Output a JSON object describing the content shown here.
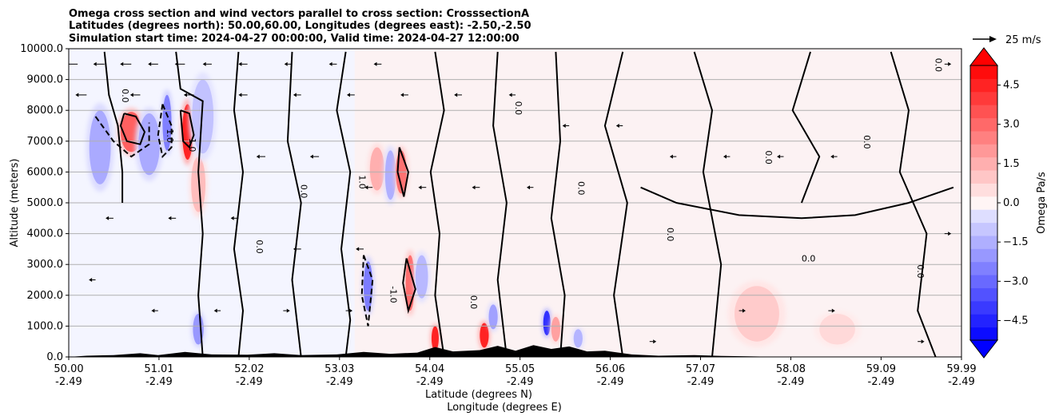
{
  "chart_data": {
    "type": "heatmap",
    "title_lines": [
      "Omega cross section and wind vectors parallel to cross section: CrosssectionA",
      "Latitudes (degrees north): 50.00,60.00, Longitudes (degrees east): -2.50,-2.50",
      "Simulation start time: 2024-04-27 00:00:00, Valid time: 2024-04-27 12:00:00"
    ],
    "ylabel": "Altitude (meters)",
    "xlabel_lat": "Latitude (degrees N)",
    "xlabel_lon": "Longitude (degrees E)",
    "ylim": [
      0,
      10000
    ],
    "xlim": [
      50.0,
      59.99
    ],
    "y_ticks": [
      {
        "value": 0,
        "label": "0.0"
      },
      {
        "value": 1000,
        "label": "1000.0"
      },
      {
        "value": 2000,
        "label": "2000.0"
      },
      {
        "value": 3000,
        "label": "3000.0"
      },
      {
        "value": 4000,
        "label": "4000.0"
      },
      {
        "value": 5000,
        "label": "5000.0"
      },
      {
        "value": 6000,
        "label": "6000.0"
      },
      {
        "value": 7000,
        "label": "7000.0"
      },
      {
        "value": 8000,
        "label": "8000.0"
      },
      {
        "value": 9000,
        "label": "9000.0"
      },
      {
        "value": 10000,
        "label": "10000.0"
      }
    ],
    "x_ticks": [
      {
        "value": 50.0,
        "lat": "50.00",
        "lon": "-2.49"
      },
      {
        "value": 51.01,
        "lat": "51.01",
        "lon": "-2.49"
      },
      {
        "value": 52.02,
        "lat": "52.02",
        "lon": "-2.49"
      },
      {
        "value": 53.03,
        "lat": "53.03",
        "lon": "-2.49"
      },
      {
        "value": 54.04,
        "lat": "54.04",
        "lon": "-2.49"
      },
      {
        "value": 55.05,
        "lat": "55.05",
        "lon": "-2.49"
      },
      {
        "value": 56.06,
        "lat": "56.06",
        "lon": "-2.49"
      },
      {
        "value": 57.07,
        "lat": "57.07",
        "lon": "-2.49"
      },
      {
        "value": 58.08,
        "lat": "58.08",
        "lon": "-2.49"
      },
      {
        "value": 59.09,
        "lat": "59.09",
        "lon": "-2.49"
      },
      {
        "value": 59.99,
        "lat": "59.99",
        "lon": "-2.49"
      }
    ],
    "colorbar": {
      "label": "Omega Pa/s",
      "range": [
        -5.25,
        5.25
      ],
      "levels": 21,
      "ticks": [
        {
          "value": 4.5,
          "label": "4.5"
        },
        {
          "value": 3.0,
          "label": "3.0"
        },
        {
          "value": 1.5,
          "label": "1.5"
        },
        {
          "value": 0.0,
          "label": "0.0"
        },
        {
          "value": -1.5,
          "label": "−1.5"
        },
        {
          "value": -3.0,
          "label": "−3.0"
        },
        {
          "value": -4.5,
          "label": "−4.5"
        }
      ]
    },
    "quiver_key": {
      "label": "25 m/s",
      "speed": 25
    },
    "contour_labels": [
      "0.0",
      "1.0",
      "-1.0"
    ],
    "annotations": [
      {
        "text": "0.0",
        "lat": 58.2,
        "alt": 3100
      }
    ],
    "omega_features": [
      {
        "lat": 50.7,
        "alt": 7300,
        "dlat": 0.12,
        "dalt": 650,
        "value": 3.2
      },
      {
        "lat": 50.35,
        "alt": 6800,
        "dlat": 0.12,
        "dalt": 1200,
        "value": -1.6
      },
      {
        "lat": 50.9,
        "alt": 6900,
        "dlat": 0.12,
        "dalt": 1000,
        "value": -1.6
      },
      {
        "lat": 51.1,
        "alt": 7600,
        "dlat": 0.05,
        "dalt": 900,
        "value": -2.5
      },
      {
        "lat": 51.33,
        "alt": 7300,
        "dlat": 0.06,
        "dalt": 900,
        "value": 4.5
      },
      {
        "lat": 51.45,
        "alt": 5600,
        "dlat": 0.08,
        "dalt": 900,
        "value": 1.2
      },
      {
        "lat": 51.5,
        "alt": 7800,
        "dlat": 0.12,
        "dalt": 1200,
        "value": -1.1
      },
      {
        "lat": 51.45,
        "alt": 900,
        "dlat": 0.06,
        "dalt": 500,
        "value": -2.0
      },
      {
        "lat": 53.35,
        "alt": 2300,
        "dlat": 0.05,
        "dalt": 800,
        "value": -2.6
      },
      {
        "lat": 53.45,
        "alt": 6100,
        "dlat": 0.08,
        "dalt": 700,
        "value": 1.5
      },
      {
        "lat": 53.6,
        "alt": 5900,
        "dlat": 0.06,
        "dalt": 800,
        "value": -1.5
      },
      {
        "lat": 53.72,
        "alt": 6000,
        "dlat": 0.06,
        "dalt": 700,
        "value": 2.8
      },
      {
        "lat": 53.82,
        "alt": 2400,
        "dlat": 0.05,
        "dalt": 900,
        "value": 2.9
      },
      {
        "lat": 53.95,
        "alt": 2600,
        "dlat": 0.07,
        "dalt": 700,
        "value": -1.3
      },
      {
        "lat": 54.1,
        "alt": 600,
        "dlat": 0.04,
        "dalt": 400,
        "value": 4.5
      },
      {
        "lat": 54.65,
        "alt": 700,
        "dlat": 0.05,
        "dalt": 400,
        "value": 4.5
      },
      {
        "lat": 54.75,
        "alt": 1300,
        "dlat": 0.05,
        "dalt": 400,
        "value": -1.8
      },
      {
        "lat": 55.35,
        "alt": 1100,
        "dlat": 0.04,
        "dalt": 400,
        "value": -4.2
      },
      {
        "lat": 55.45,
        "alt": 900,
        "dlat": 0.05,
        "dalt": 400,
        "value": 1.8
      },
      {
        "lat": 55.7,
        "alt": 600,
        "dlat": 0.05,
        "dalt": 300,
        "value": -1.4
      },
      {
        "lat": 57.7,
        "alt": 1400,
        "dlat": 0.25,
        "dalt": 900,
        "value": 0.9
      },
      {
        "lat": 58.6,
        "alt": 900,
        "dlat": 0.2,
        "dalt": 500,
        "value": 0.6
      }
    ],
    "contours": [
      {
        "style": "solid",
        "points": [
          [
            50.4,
            9900
          ],
          [
            50.45,
            8500
          ],
          [
            50.55,
            7500
          ],
          [
            50.6,
            6000
          ],
          [
            50.6,
            5000
          ]
        ]
      },
      {
        "style": "dash",
        "points": [
          [
            50.3,
            7800
          ],
          [
            50.5,
            7000
          ],
          [
            50.7,
            6500
          ],
          [
            50.9,
            6900
          ],
          [
            50.9,
            7600
          ]
        ]
      },
      {
        "style": "solid",
        "points": [
          [
            50.62,
            7900
          ],
          [
            50.75,
            7800
          ],
          [
            50.85,
            7300
          ],
          [
            50.8,
            6900
          ],
          [
            50.65,
            7000
          ],
          [
            50.58,
            7500
          ],
          [
            50.62,
            7900
          ]
        ]
      },
      {
        "style": "solid",
        "points": [
          [
            51.25,
            8000
          ],
          [
            51.35,
            7900
          ],
          [
            51.4,
            7200
          ],
          [
            51.35,
            6800
          ],
          [
            51.28,
            7000
          ],
          [
            51.25,
            8000
          ]
        ]
      },
      {
        "style": "dash",
        "points": [
          [
            51.05,
            8200
          ],
          [
            51.15,
            7500
          ],
          [
            51.15,
            6800
          ],
          [
            51.05,
            6500
          ],
          [
            51.0,
            7200
          ],
          [
            51.05,
            8200
          ]
        ]
      },
      {
        "style": "solid",
        "points": [
          [
            51.2,
            9900
          ],
          [
            51.25,
            8700
          ],
          [
            51.5,
            8300
          ],
          [
            51.45,
            6000
          ],
          [
            51.5,
            4000
          ],
          [
            51.45,
            2000
          ],
          [
            51.5,
            0
          ]
        ]
      },
      {
        "style": "solid",
        "points": [
          [
            51.9,
            9900
          ],
          [
            51.85,
            8000
          ],
          [
            51.95,
            6000
          ],
          [
            51.85,
            3500
          ],
          [
            51.95,
            1500
          ],
          [
            51.9,
            0
          ]
        ]
      },
      {
        "style": "solid",
        "points": [
          [
            52.5,
            9900
          ],
          [
            52.45,
            7000
          ],
          [
            52.6,
            5000
          ],
          [
            52.5,
            2500
          ],
          [
            52.6,
            0
          ]
        ]
      },
      {
        "style": "solid",
        "points": [
          [
            53.1,
            9900
          ],
          [
            53.0,
            8000
          ],
          [
            53.15,
            6000
          ],
          [
            53.05,
            3500
          ],
          [
            53.15,
            1200
          ],
          [
            53.1,
            0
          ]
        ]
      },
      {
        "style": "dash",
        "points": [
          [
            53.3,
            3300
          ],
          [
            53.4,
            2500
          ],
          [
            53.35,
            1000
          ],
          [
            53.28,
            2000
          ],
          [
            53.3,
            3300
          ]
        ]
      },
      {
        "style": "solid",
        "points": [
          [
            53.7,
            6800
          ],
          [
            53.8,
            6000
          ],
          [
            53.75,
            5200
          ],
          [
            53.68,
            6000
          ],
          [
            53.7,
            6800
          ]
        ]
      },
      {
        "style": "solid",
        "points": [
          [
            53.78,
            3200
          ],
          [
            53.88,
            2200
          ],
          [
            53.8,
            1500
          ],
          [
            53.74,
            2400
          ],
          [
            53.78,
            3200
          ]
        ]
      },
      {
        "style": "solid",
        "points": [
          [
            54.1,
            9900
          ],
          [
            54.2,
            8000
          ],
          [
            54.05,
            6000
          ],
          [
            54.15,
            4000
          ],
          [
            54.1,
            2000
          ],
          [
            54.2,
            0
          ]
        ]
      },
      {
        "style": "solid",
        "points": [
          [
            54.8,
            9900
          ],
          [
            54.75,
            7500
          ],
          [
            54.9,
            5000
          ],
          [
            54.8,
            2500
          ],
          [
            54.9,
            0
          ]
        ]
      },
      {
        "style": "solid",
        "points": [
          [
            55.45,
            9900
          ],
          [
            55.5,
            7000
          ],
          [
            55.4,
            4500
          ],
          [
            55.55,
            2000
          ],
          [
            55.5,
            0
          ]
        ]
      },
      {
        "style": "solid",
        "points": [
          [
            56.2,
            9900
          ],
          [
            56.0,
            7500
          ],
          [
            56.25,
            5000
          ],
          [
            56.1,
            2000
          ],
          [
            56.2,
            0
          ]
        ]
      },
      {
        "style": "solid",
        "points": [
          [
            56.4,
            5500
          ],
          [
            56.8,
            5000
          ],
          [
            57.5,
            4600
          ],
          [
            58.2,
            4500
          ],
          [
            58.8,
            4600
          ],
          [
            59.4,
            5000
          ],
          [
            59.9,
            5500
          ]
        ]
      },
      {
        "style": "solid",
        "points": [
          [
            57.0,
            9900
          ],
          [
            57.2,
            8000
          ],
          [
            57.1,
            6000
          ],
          [
            57.3,
            3000
          ],
          [
            57.2,
            0
          ]
        ]
      },
      {
        "style": "solid",
        "points": [
          [
            58.3,
            9900
          ],
          [
            58.1,
            8000
          ],
          [
            58.4,
            6500
          ],
          [
            58.2,
            5000
          ]
        ]
      },
      {
        "style": "solid",
        "points": [
          [
            59.2,
            9900
          ],
          [
            59.4,
            8000
          ],
          [
            59.3,
            6000
          ],
          [
            59.6,
            4000
          ],
          [
            59.5,
            1500
          ],
          [
            59.7,
            0
          ]
        ]
      }
    ],
    "wind_vectors": [
      {
        "lat": 50.1,
        "alt": 9500,
        "u": -6
      },
      {
        "lat": 50.4,
        "alt": 9500,
        "u": -5
      },
      {
        "lat": 50.7,
        "alt": 9500,
        "u": -5
      },
      {
        "lat": 51.0,
        "alt": 9500,
        "u": -4
      },
      {
        "lat": 51.3,
        "alt": 9500,
        "u": -4
      },
      {
        "lat": 51.6,
        "alt": 9500,
        "u": -3
      },
      {
        "lat": 52.0,
        "alt": 9500,
        "u": -3
      },
      {
        "lat": 52.5,
        "alt": 9500,
        "u": -2
      },
      {
        "lat": 53.0,
        "alt": 9500,
        "u": -2
      },
      {
        "lat": 53.5,
        "alt": 9500,
        "u": -2
      },
      {
        "lat": 50.2,
        "alt": 8500,
        "u": -5
      },
      {
        "lat": 50.8,
        "alt": 8500,
        "u": -4
      },
      {
        "lat": 51.4,
        "alt": 8500,
        "u": -4
      },
      {
        "lat": 52.0,
        "alt": 8500,
        "u": -3
      },
      {
        "lat": 52.6,
        "alt": 8500,
        "u": -2
      },
      {
        "lat": 53.2,
        "alt": 8500,
        "u": -2
      },
      {
        "lat": 53.8,
        "alt": 8500,
        "u": -2
      },
      {
        "lat": 54.4,
        "alt": 8500,
        "u": -2
      },
      {
        "lat": 55.0,
        "alt": 8500,
        "u": -1
      },
      {
        "lat": 55.6,
        "alt": 7500,
        "u": -1
      },
      {
        "lat": 56.2,
        "alt": 7500,
        "u": -1
      },
      {
        "lat": 56.8,
        "alt": 6500,
        "u": -1
      },
      {
        "lat": 57.4,
        "alt": 6500,
        "u": -1
      },
      {
        "lat": 58.0,
        "alt": 6500,
        "u": -1
      },
      {
        "lat": 58.6,
        "alt": 6500,
        "u": -1
      },
      {
        "lat": 52.2,
        "alt": 6500,
        "u": -3
      },
      {
        "lat": 52.8,
        "alt": 6500,
        "u": -3
      },
      {
        "lat": 53.4,
        "alt": 5500,
        "u": -2
      },
      {
        "lat": 54.0,
        "alt": 5500,
        "u": -2
      },
      {
        "lat": 54.6,
        "alt": 5500,
        "u": -2
      },
      {
        "lat": 55.2,
        "alt": 5500,
        "u": -1
      },
      {
        "lat": 50.5,
        "alt": 4500,
        "u": -2
      },
      {
        "lat": 51.2,
        "alt": 4500,
        "u": -2
      },
      {
        "lat": 51.9,
        "alt": 4500,
        "u": -2
      },
      {
        "lat": 52.6,
        "alt": 3500,
        "u": -2
      },
      {
        "lat": 53.3,
        "alt": 3500,
        "u": -2
      },
      {
        "lat": 50.3,
        "alt": 2500,
        "u": -1
      },
      {
        "lat": 51.0,
        "alt": 1500,
        "u": -1
      },
      {
        "lat": 51.7,
        "alt": 1500,
        "u": -1
      },
      {
        "lat": 52.4,
        "alt": 1500,
        "u": 1
      },
      {
        "lat": 53.1,
        "alt": 1500,
        "u": 1
      },
      {
        "lat": 56.5,
        "alt": 500,
        "u": 1
      },
      {
        "lat": 57.5,
        "alt": 1500,
        "u": 1
      },
      {
        "lat": 58.5,
        "alt": 1500,
        "u": 1
      },
      {
        "lat": 59.5,
        "alt": 500,
        "u": 1
      },
      {
        "lat": 59.8,
        "alt": 4000,
        "u": 1
      },
      {
        "lat": 59.8,
        "alt": 9500,
        "u": 1
      }
    ],
    "terrain": [
      [
        50.0,
        0
      ],
      [
        50.2,
        40
      ],
      [
        50.5,
        60
      ],
      [
        50.8,
        120
      ],
      [
        51.0,
        60
      ],
      [
        51.3,
        160
      ],
      [
        51.6,
        80
      ],
      [
        52.0,
        70
      ],
      [
        52.3,
        120
      ],
      [
        52.6,
        60
      ],
      [
        53.0,
        80
      ],
      [
        53.3,
        160
      ],
      [
        53.6,
        100
      ],
      [
        53.9,
        140
      ],
      [
        54.1,
        320
      ],
      [
        54.3,
        180
      ],
      [
        54.6,
        220
      ],
      [
        54.8,
        360
      ],
      [
        55.0,
        200
      ],
      [
        55.2,
        380
      ],
      [
        55.4,
        260
      ],
      [
        55.6,
        340
      ],
      [
        55.8,
        180
      ],
      [
        56.0,
        200
      ],
      [
        56.3,
        80
      ],
      [
        56.6,
        40
      ],
      [
        57.0,
        60
      ],
      [
        57.3,
        30
      ],
      [
        57.6,
        20
      ],
      [
        58.0,
        0
      ],
      [
        59.99,
        0
      ]
    ]
  }
}
